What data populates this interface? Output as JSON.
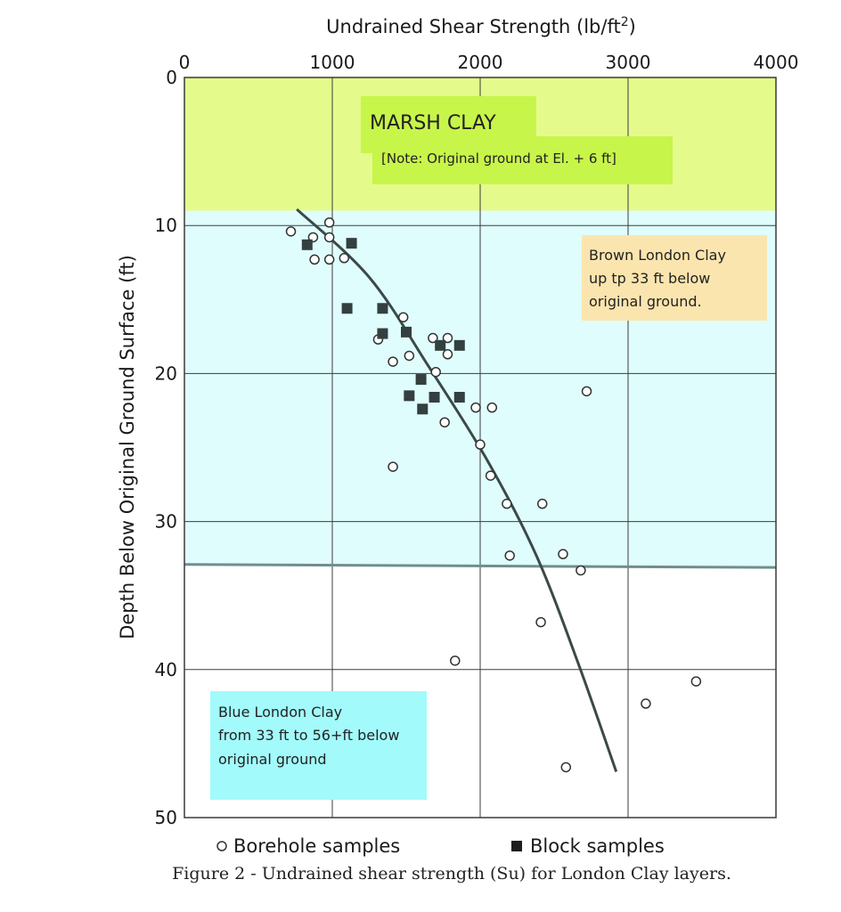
{
  "chart_data": {
    "type": "scatter",
    "title": "",
    "xlabel": "Undrained Shear Strength (lb/ft²)",
    "ylabel": "Depth Below Original Ground Surface (ft)",
    "xlim": [
      0,
      4000
    ],
    "ylim": [
      0,
      50
    ],
    "y_inverted": true,
    "x_axis_position": "top",
    "x_ticks": [
      0,
      1000,
      2000,
      3000,
      4000
    ],
    "y_ticks": [
      0,
      10,
      20,
      30,
      40,
      50
    ],
    "grid": true,
    "legend_position": "bottom",
    "layers": [
      {
        "name": "marsh-clay",
        "from": 0,
        "to": 9,
        "color": "#e4fb8c"
      },
      {
        "name": "brown-london-clay",
        "from": 9,
        "to": 33,
        "color": "#e0fdfd"
      },
      {
        "name": "blue-london-clay",
        "from": 33,
        "to": 50,
        "color": "#ffffff"
      }
    ],
    "annotations": {
      "marsh_title": "MARSH CLAY",
      "marsh_note": "[Note: Original ground at El. + 6 ft]",
      "brown_line1": "Brown London Clay",
      "brown_line2": "up tp 33 ft below",
      "brown_line3": "original ground.",
      "blue_line1": "Blue London Clay",
      "blue_line2": "from 33 ft to 56+ft below",
      "blue_line3": "original ground"
    },
    "annotation_colors": {
      "marsh_box": "#c8f54a",
      "brown_box": "#fbe5ae",
      "blue_box": "#a2fafb"
    },
    "series": [
      {
        "name": "Borehole samples",
        "marker": "open-circle",
        "points": [
          [
            720,
            10.4
          ],
          [
            870,
            10.8
          ],
          [
            980,
            9.8
          ],
          [
            980,
            10.8
          ],
          [
            880,
            12.3
          ],
          [
            980,
            12.3
          ],
          [
            1080,
            12.2
          ],
          [
            1480,
            16.2
          ],
          [
            1310,
            17.7
          ],
          [
            1410,
            19.2
          ],
          [
            1520,
            18.8
          ],
          [
            1680,
            17.6
          ],
          [
            1780,
            17.6
          ],
          [
            1780,
            18.7
          ],
          [
            1700,
            19.9
          ],
          [
            1760,
            23.3
          ],
          [
            1970,
            22.3
          ],
          [
            2080,
            22.3
          ],
          [
            2000,
            24.8
          ],
          [
            2070,
            26.9
          ],
          [
            2180,
            28.8
          ],
          [
            2200,
            32.3
          ],
          [
            2420,
            28.8
          ],
          [
            2560,
            32.2
          ],
          [
            2680,
            33.3
          ],
          [
            2720,
            21.2
          ],
          [
            1410,
            26.3
          ],
          [
            2410,
            36.8
          ],
          [
            1830,
            39.4
          ],
          [
            2580,
            46.6
          ],
          [
            3120,
            42.3
          ],
          [
            3460,
            40.8
          ]
        ]
      },
      {
        "name": "Block samples",
        "marker": "filled-square",
        "points": [
          [
            830,
            11.3
          ],
          [
            1130,
            11.2
          ],
          [
            1100,
            15.6
          ],
          [
            1340,
            15.6
          ],
          [
            1340,
            17.3
          ],
          [
            1500,
            17.2
          ],
          [
            1600,
            20.4
          ],
          [
            1730,
            18.1
          ],
          [
            1860,
            18.1
          ],
          [
            1520,
            21.5
          ],
          [
            1610,
            22.4
          ],
          [
            1690,
            21.6
          ],
          [
            1860,
            21.6
          ]
        ]
      }
    ],
    "trend_line": {
      "style": "solid",
      "points": [
        [
          760,
          8.9
        ],
        [
          1250,
          13.5
        ],
        [
          1650,
          19.5
        ],
        [
          2050,
          25.9
        ],
        [
          2380,
          32.3
        ],
        [
          2660,
          39.5
        ],
        [
          2920,
          46.9
        ]
      ]
    },
    "boundary_line": {
      "depth_left": 32.9,
      "depth_right": 33.1,
      "color": "#6f8f8c"
    },
    "caption": "Figure 2 - Undrained shear strength (Su) for London Clay layers."
  }
}
